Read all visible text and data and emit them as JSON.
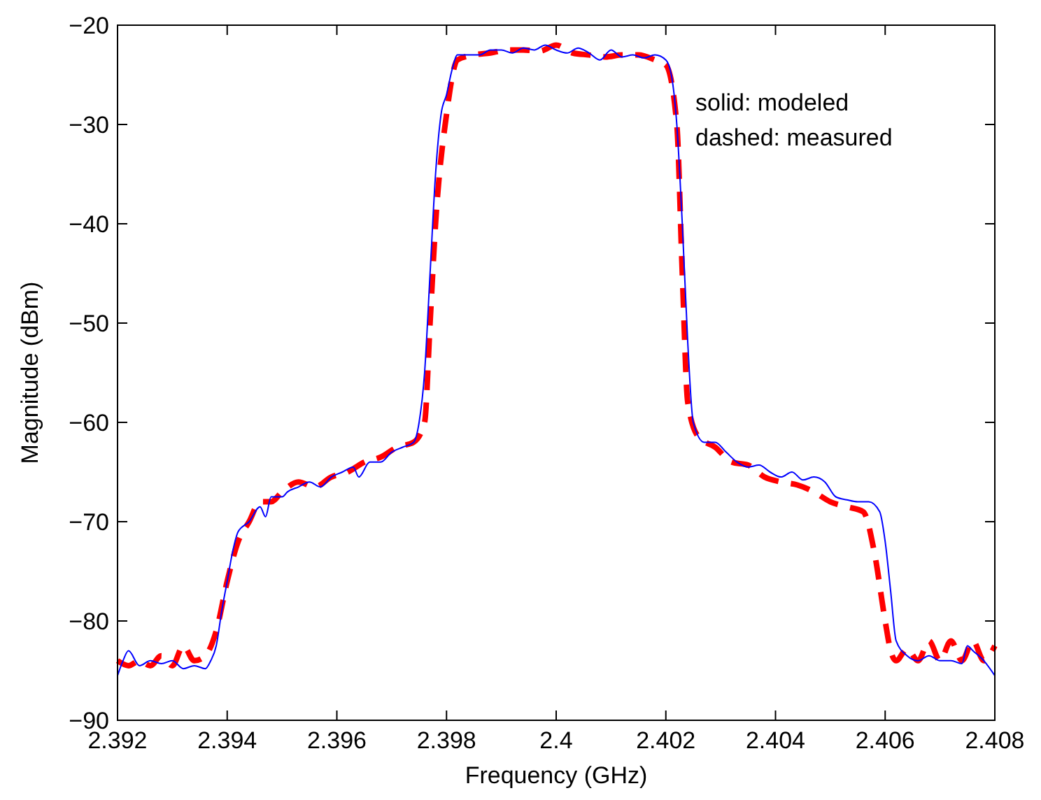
{
  "chart_data": {
    "type": "line",
    "xlabel": "Frequency (GHz)",
    "ylabel": "Magnitude (dBm)",
    "xlim": [
      2.392,
      2.408
    ],
    "ylim": [
      -90,
      -20
    ],
    "xticks": [
      2.392,
      2.394,
      2.396,
      2.398,
      2.4,
      2.402,
      2.404,
      2.406,
      2.408
    ],
    "yticks": [
      -90,
      -80,
      -70,
      -60,
      -50,
      -40,
      -30,
      -20
    ],
    "grid": false,
    "annotations": [
      "solid: modeled",
      "dashed: measured"
    ],
    "series": [
      {
        "color": "#0000ff",
        "line_style": "solid",
        "x": [
          2.392,
          2.3921,
          2.3922,
          2.3924,
          2.3926,
          2.3928,
          2.393,
          2.3932,
          2.3934,
          2.3936,
          2.3937,
          2.3938,
          2.3939,
          2.394,
          2.3941,
          2.3942,
          2.3944,
          2.3946,
          2.3947,
          2.3948,
          2.395,
          2.3951,
          2.3953,
          2.3955,
          2.3957,
          2.3959,
          2.3961,
          2.3963,
          2.3964,
          2.3966,
          2.3968,
          2.397,
          2.3972,
          2.3974,
          2.3975,
          2.3976,
          2.3977,
          2.3978,
          2.3979,
          2.398,
          2.3981,
          2.3982,
          2.3984,
          2.3986,
          2.3988,
          2.399,
          2.3992,
          2.3994,
          2.3996,
          2.3998,
          2.4,
          2.4002,
          2.4004,
          2.4006,
          2.4008,
          2.401,
          2.4012,
          2.4014,
          2.4016,
          2.4018,
          2.402,
          2.4021,
          2.4022,
          2.4023,
          2.4024,
          2.4025,
          2.4027,
          2.4029,
          2.4031,
          2.4033,
          2.4035,
          2.4037,
          2.4039,
          2.4041,
          2.4043,
          2.4045,
          2.4047,
          2.4049,
          2.4051,
          2.4053,
          2.4055,
          2.4057,
          2.4059,
          2.406,
          2.4061,
          2.4062,
          2.4064,
          2.4066,
          2.4068,
          2.407,
          2.4072,
          2.4074,
          2.4075,
          2.4076,
          2.4078,
          2.408
        ],
        "values": [
          -85.5,
          -84,
          -83,
          -84.5,
          -84,
          -84.3,
          -84,
          -84.8,
          -84.5,
          -84.8,
          -84,
          -82.5,
          -79,
          -76,
          -73,
          -71,
          -70,
          -68.5,
          -69.5,
          -67.5,
          -67.5,
          -67,
          -66.5,
          -66,
          -66.5,
          -65.5,
          -65,
          -64.5,
          -65.5,
          -64,
          -64,
          -63,
          -62.5,
          -62,
          -60,
          -55,
          -45,
          -35,
          -29,
          -27,
          -24.5,
          -23,
          -23,
          -23,
          -22.5,
          -22.5,
          -22.8,
          -22.3,
          -22.5,
          -22,
          -22.5,
          -22.8,
          -22.3,
          -22.8,
          -23.5,
          -22.5,
          -23.2,
          -23,
          -23.3,
          -23,
          -23.5,
          -25,
          -30,
          -40,
          -52,
          -60,
          -62,
          -62,
          -63,
          -64,
          -64.5,
          -64.3,
          -65,
          -65.5,
          -65,
          -65.8,
          -65.5,
          -66,
          -67.5,
          -67.8,
          -68,
          -68,
          -69,
          -72,
          -77,
          -82,
          -83.5,
          -84,
          -83.5,
          -84,
          -84,
          -84.3,
          -82.5,
          -83,
          -84,
          -85.5
        ]
      },
      {
        "color": "#ff0000",
        "line_style": "dashed",
        "x": [
          2.392,
          2.3922,
          2.3924,
          2.3926,
          2.3928,
          2.393,
          2.3932,
          2.3934,
          2.3936,
          2.3938,
          2.394,
          2.3942,
          2.3944,
          2.3946,
          2.3948,
          2.395,
          2.3953,
          2.3956,
          2.3959,
          2.3962,
          2.3965,
          2.3968,
          2.3971,
          2.3974,
          2.3976,
          2.3977,
          2.3978,
          2.398,
          2.3982,
          2.3985,
          2.3988,
          2.3991,
          2.3994,
          2.3997,
          2.4,
          2.4003,
          2.4006,
          2.4009,
          2.4012,
          2.4015,
          2.4018,
          2.402,
          2.4022,
          2.4023,
          2.4024,
          2.4026,
          2.4029,
          2.4032,
          2.4035,
          2.4038,
          2.4041,
          2.4044,
          2.4047,
          2.405,
          2.4053,
          2.4056,
          2.4058,
          2.406,
          2.4061,
          2.4062,
          2.4064,
          2.4066,
          2.4068,
          2.407,
          2.4072,
          2.4074,
          2.4076,
          2.4078,
          2.408
        ],
        "values": [
          -84,
          -84.5,
          -84,
          -84.5,
          -83.5,
          -84.5,
          -82.5,
          -84,
          -83.5,
          -81,
          -76,
          -72,
          -70,
          -68,
          -68,
          -67,
          -66,
          -66.5,
          -65.5,
          -65,
          -64,
          -63.5,
          -62.5,
          -62,
          -60,
          -50,
          -40,
          -29,
          -23.5,
          -23,
          -22.8,
          -22.5,
          -22.5,
          -22.6,
          -22,
          -22.8,
          -23,
          -23.2,
          -23,
          -23,
          -23.5,
          -24,
          -30,
          -45,
          -58,
          -61.5,
          -62.5,
          -64,
          -64.3,
          -65.5,
          -66,
          -66.3,
          -67,
          -68,
          -68.5,
          -69,
          -73,
          -80,
          -83,
          -84,
          -82.8,
          -84,
          -82,
          -84,
          -82,
          -84,
          -82,
          -84,
          -82.5
        ]
      }
    ]
  }
}
